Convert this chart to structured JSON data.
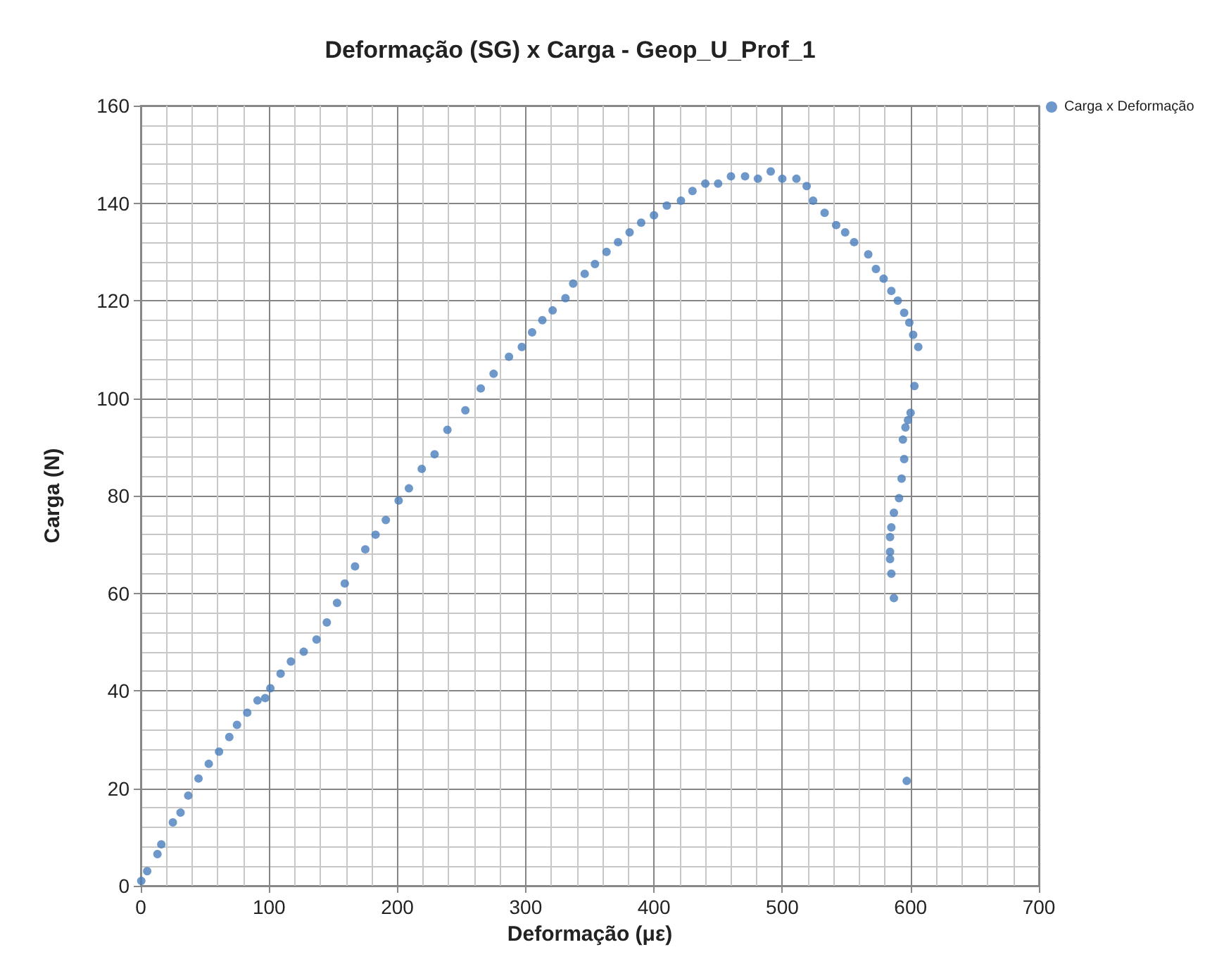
{
  "chart_data": {
    "type": "scatter",
    "title": "Deformação (SG) x Carga - Geop_U_Prof_1",
    "xlabel": "Deformação (με)",
    "ylabel": "Carga (N)",
    "series": [
      {
        "name": "Carga x Deformação",
        "color": "#4a7ebb",
        "x": [
          0.4,
          5,
          13,
          16,
          25,
          31,
          37,
          45,
          53,
          61,
          69,
          75,
          83,
          91,
          97,
          101,
          109,
          117,
          127,
          137,
          145,
          153,
          159,
          167,
          175,
          183,
          191,
          201,
          209,
          219,
          229,
          239,
          253,
          265,
          275,
          287,
          297,
          305,
          313,
          321,
          331,
          337,
          346,
          354,
          363,
          372,
          381,
          390,
          400,
          410,
          421,
          430,
          440,
          450,
          460,
          471,
          481,
          491,
          500,
          511,
          519,
          524,
          533,
          542,
          549,
          556,
          567,
          573,
          579,
          585,
          590,
          595,
          599,
          602,
          606,
          603,
          600,
          598,
          596,
          594,
          595,
          593,
          591,
          587,
          585,
          584,
          584,
          584,
          585,
          587,
          597
        ],
        "values": [
          1,
          3,
          6.5,
          8.5,
          13,
          15,
          18.5,
          22,
          25,
          27.5,
          30.5,
          33,
          35.5,
          38,
          38.5,
          40.5,
          43.5,
          46,
          48,
          50.5,
          54,
          58,
          62,
          65.5,
          69,
          72,
          75,
          79,
          81.5,
          85.5,
          88.5,
          93.5,
          97.5,
          102,
          105,
          108.5,
          110.5,
          113.5,
          116,
          118,
          120.5,
          123.5,
          125.5,
          127.5,
          130,
          132,
          134,
          136,
          137.5,
          139.5,
          140.5,
          142.5,
          144,
          144,
          145.5,
          145.5,
          145,
          146.5,
          145,
          145,
          143.5,
          140.5,
          138,
          135.5,
          134,
          132,
          129.5,
          126.5,
          124.5,
          122,
          120,
          117.5,
          115.5,
          113,
          110.5,
          102.5,
          97,
          95.5,
          94,
          91.5,
          87.5,
          83.5,
          79.5,
          76.5,
          73.5,
          71.5,
          68.5,
          67,
          64,
          59,
          21.5
        ]
      }
    ],
    "xlim": [
      0,
      700
    ],
    "xticks": [
      0,
      100,
      200,
      300,
      400,
      500,
      600,
      700
    ],
    "ylim": [
      0,
      160
    ],
    "yticks": [
      0,
      20,
      40,
      60,
      80,
      100,
      120,
      140,
      160
    ],
    "grid": true,
    "legend": "top right",
    "marker": "circle"
  }
}
